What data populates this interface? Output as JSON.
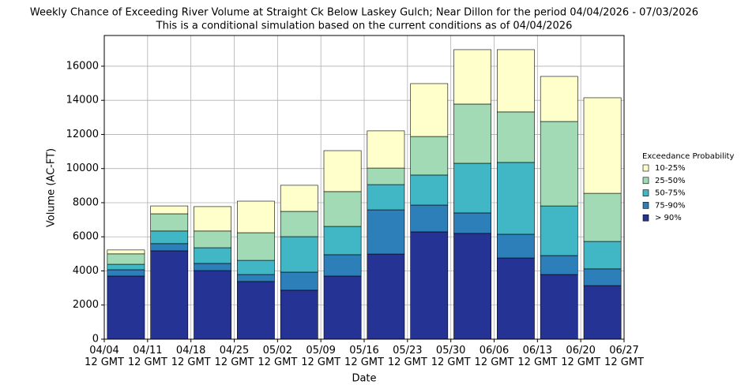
{
  "chart_data": {
    "type": "stacked_bar",
    "title": "Weekly Chance of Exceeding River Volume at Straight Ck Below Laskey Gulch; Near Dillon for the period 04/04/2026 - 07/03/2026",
    "subtitle": "This is a conditional simulation based on the current conditions as of 04/04/2026",
    "xlabel": "Date",
    "ylabel": "Volume (AC-FT)",
    "legend_title": "Exceedance Probability",
    "categories": [
      null,
      null,
      null,
      null,
      null,
      null,
      null,
      null,
      null,
      null,
      null,
      null
    ],
    "series": [
      {
        "name": "> 90%",
        "color": "#253494",
        "values": [
          3700,
          5180,
          4020,
          3380,
          2870,
          3700,
          4990,
          6290,
          6200,
          4760,
          3790,
          3140
        ]
      },
      {
        "name": "75-90%",
        "color": "#2c7fb8",
        "values": [
          370,
          420,
          420,
          410,
          1060,
          1250,
          2590,
          1570,
          1200,
          1390,
          1110,
          980
        ]
      },
      {
        "name": "50-75%",
        "color": "#41b6c4",
        "values": [
          320,
          740,
          920,
          830,
          2080,
          1660,
          1480,
          1760,
          2910,
          4210,
          2910,
          1610
        ]
      },
      {
        "name": "25-50%",
        "color": "#a1dab4",
        "values": [
          610,
          1010,
          980,
          1620,
          1480,
          2040,
          970,
          2260,
          3470,
          2960,
          4950,
          2820
        ]
      },
      {
        "name": "10-25%",
        "color": "#ffffcc",
        "values": [
          230,
          460,
          1430,
          1850,
          1530,
          2400,
          2180,
          3100,
          3190,
          3650,
          2640,
          5600
        ]
      }
    ],
    "xlim": [
      0,
      12
    ],
    "xticks": [
      {
        "value": 0,
        "label": "04/04 12 GMT"
      },
      {
        "value": 1,
        "label": "04/11 12 GMT"
      },
      {
        "value": 2,
        "label": "04/18 12 GMT"
      },
      {
        "value": 3,
        "label": "04/25 12 GMT"
      },
      {
        "value": 4,
        "label": "05/02 12 GMT"
      },
      {
        "value": 5,
        "label": "05/09 12 GMT"
      },
      {
        "value": 6,
        "label": "05/16 12 GMT"
      },
      {
        "value": 7,
        "label": "05/23 12 GMT"
      },
      {
        "value": 8,
        "label": "05/30 12 GMT"
      },
      {
        "value": 9,
        "label": "06/06 12 GMT"
      },
      {
        "value": 10,
        "label": "06/13 12 GMT"
      },
      {
        "value": 11,
        "label": "06/20 12 GMT"
      },
      {
        "value": 12,
        "label": "06/27 12 GMT"
      }
    ],
    "ylim": [
      0,
      17800
    ],
    "yticks": [
      0,
      2000,
      4000,
      6000,
      8000,
      10000,
      12000,
      14000,
      16000
    ],
    "grid": true,
    "legend": "right"
  }
}
